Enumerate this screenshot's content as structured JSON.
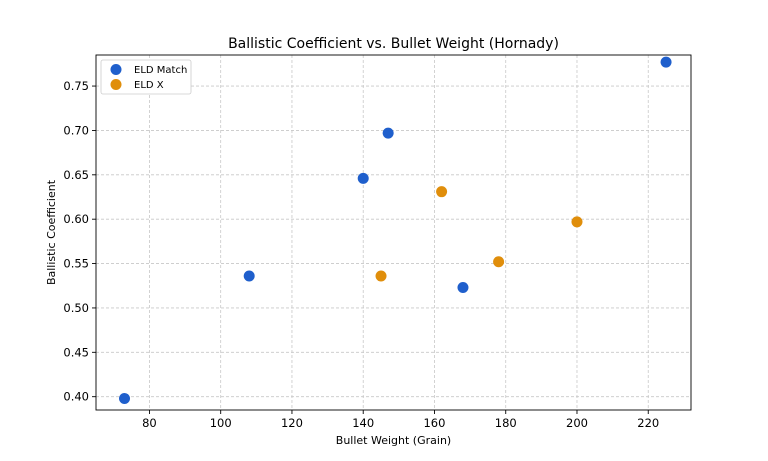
{
  "chart_data": {
    "type": "scatter",
    "title": "Ballistic Coefficient vs. Bullet Weight (Hornady)",
    "xlabel": "Bullet Weight (Grain)",
    "ylabel": "Ballistic Coefficient",
    "xlim": [
      65,
      232
    ],
    "ylim": [
      0.385,
      0.785
    ],
    "xticks": [
      80,
      100,
      120,
      140,
      160,
      180,
      200,
      220
    ],
    "yticks": [
      0.4,
      0.45,
      0.5,
      0.55,
      0.6,
      0.65,
      0.7,
      0.75
    ],
    "xtick_labels": [
      "80",
      "100",
      "120",
      "140",
      "160",
      "180",
      "200",
      "220"
    ],
    "ytick_labels": [
      "0.40",
      "0.45",
      "0.50",
      "0.55",
      "0.60",
      "0.65",
      "0.70",
      "0.75"
    ],
    "grid": true,
    "legend_position": "top-left",
    "series": [
      {
        "name": "ELD Match",
        "color": "#1f5fcc",
        "points": [
          [
            73,
            0.398
          ],
          [
            108,
            0.536
          ],
          [
            140,
            0.646
          ],
          [
            147,
            0.697
          ],
          [
            168,
            0.523
          ],
          [
            225,
            0.777
          ]
        ]
      },
      {
        "name": "ELD X",
        "color": "#e08e0b",
        "points": [
          [
            145,
            0.536
          ],
          [
            162,
            0.631
          ],
          [
            178,
            0.552
          ],
          [
            200,
            0.597
          ]
        ]
      }
    ]
  }
}
